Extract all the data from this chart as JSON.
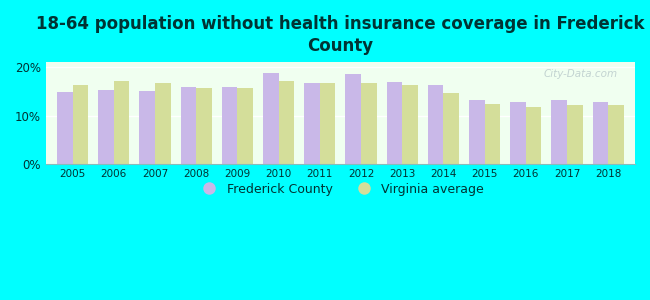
{
  "title": "18-64 population without health insurance coverage in Frederick\nCounty",
  "years": [
    2005,
    2006,
    2007,
    2008,
    2009,
    2010,
    2011,
    2012,
    2013,
    2014,
    2015,
    2016,
    2017,
    2018
  ],
  "frederick": [
    14.8,
    15.2,
    15.1,
    16.0,
    16.0,
    18.7,
    16.8,
    18.6,
    17.0,
    16.3,
    13.3,
    12.8,
    13.2,
    12.8
  ],
  "virginia": [
    16.3,
    17.2,
    16.8,
    15.7,
    15.7,
    17.2,
    16.8,
    16.8,
    16.3,
    14.6,
    12.5,
    11.8,
    12.2,
    12.2
  ],
  "frederick_color": "#c9b8e8",
  "virginia_color": "#d4de9a",
  "figure_bg": "#00ffff",
  "plot_bg": "#f0fff0",
  "title_fontsize": 12,
  "title_color": "#003333",
  "ylim": [
    0,
    21
  ],
  "yticks": [
    0,
    10,
    20
  ],
  "ytick_labels": [
    "0%",
    "10%",
    "20%"
  ],
  "legend_labels": [
    "Frederick County",
    "Virginia average"
  ],
  "watermark": "City-Data.com",
  "bar_width": 0.38
}
